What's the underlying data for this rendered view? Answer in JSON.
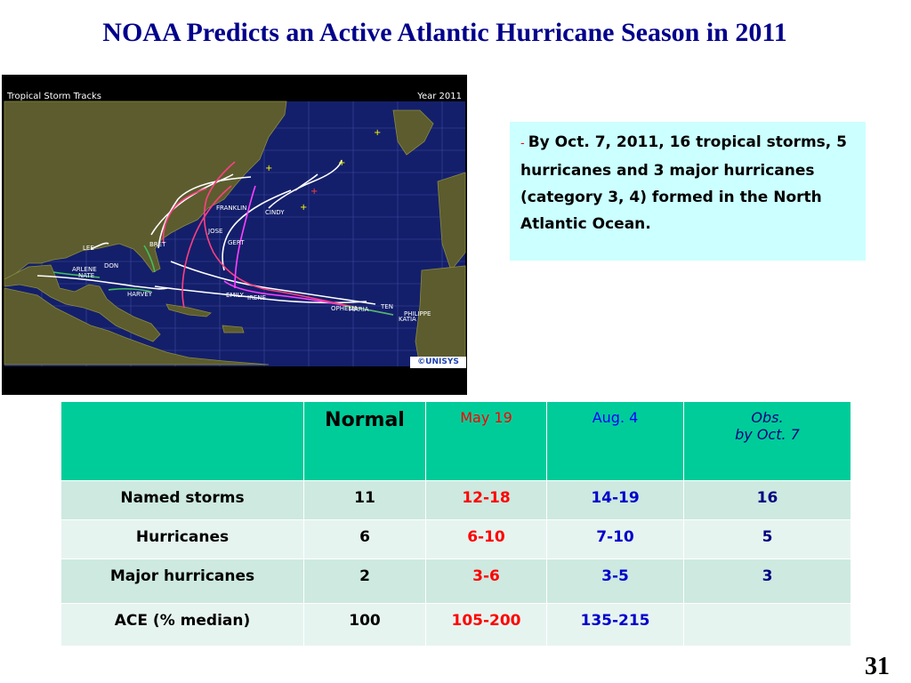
{
  "slide": {
    "title": "NOAA Predicts an Active Atlantic Hurricane Season in 2011",
    "page_number": "31"
  },
  "map": {
    "header_left": "Tropical Storm Tracks",
    "header_right": "Year 2011",
    "logo": "©UNISYS",
    "colors": {
      "ocean": "#141f6b",
      "land": "#5c5c2e",
      "grid": "#3c4ba0"
    },
    "storm_labels": [
      "ARLENE",
      "BRET",
      "CINDY",
      "DON",
      "EMILY",
      "FRANKLIN",
      "GERT",
      "HARVEY",
      "IRENE",
      "JOSE",
      "KATIA",
      "LEE",
      "MARIA",
      "NATE",
      "OPHELIA",
      "PHILIPPE",
      "TEN"
    ]
  },
  "info": {
    "dash": "-",
    "text": "By Oct. 7, 2011, 16 tropical storms, 5 hurricanes and 3 major hurricanes (category 3, 4) formed in the North Atlantic Ocean."
  },
  "table": {
    "headers": {
      "normal": "Normal",
      "may": "May 19",
      "aug": "Aug. 4",
      "obs_line1": "Obs.",
      "obs_line2": "by Oct. 7"
    },
    "rows": [
      {
        "label": "Named storms",
        "normal": "11",
        "may": "12-18",
        "aug": "14-19",
        "obs": "16"
      },
      {
        "label": "Hurricanes",
        "normal": "6",
        "may": "6-10",
        "aug": "7-10",
        "obs": "5"
      },
      {
        "label": "Major hurricanes",
        "normal": "2",
        "may": "3-6",
        "aug": "3-5",
        "obs": "3"
      },
      {
        "label": "ACE (% median)",
        "normal": "100",
        "may": "105-200",
        "aug": "135-215",
        "obs": ""
      }
    ],
    "colors": {
      "header": "#00cc99",
      "may": "#ff0000",
      "aug": "#0000cc",
      "obs": "#000080"
    }
  }
}
